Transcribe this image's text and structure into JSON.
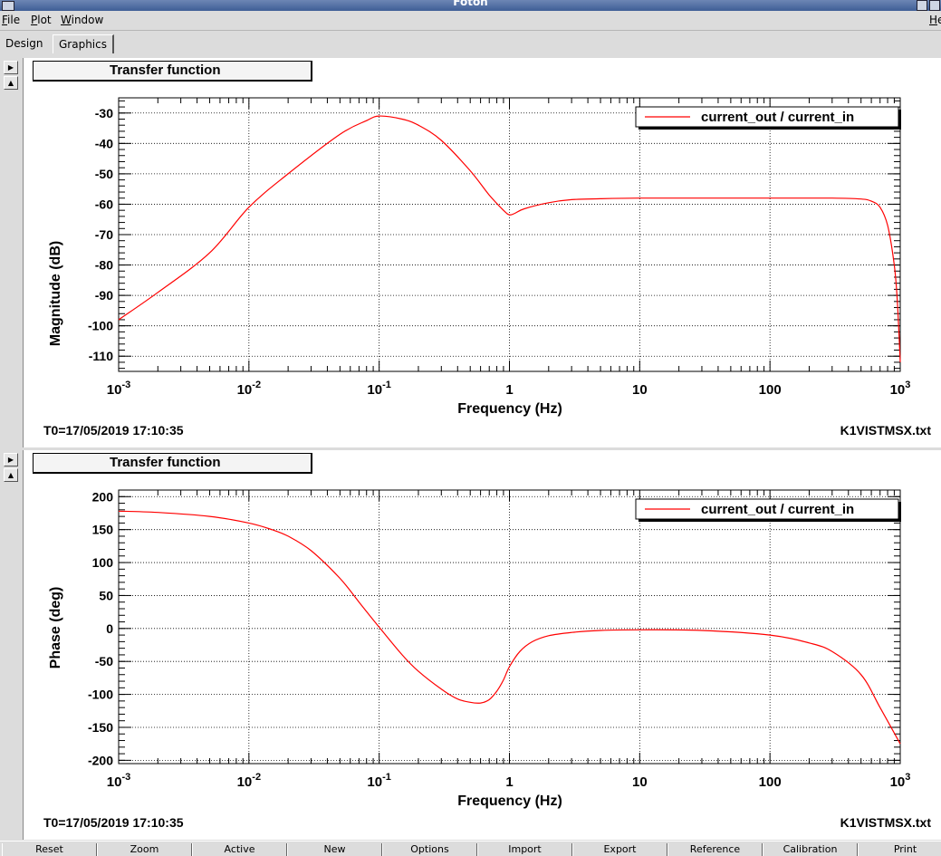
{
  "window": {
    "title": "Foton"
  },
  "menu": [
    {
      "label": "File",
      "key": "F",
      "rest": "ile"
    },
    {
      "label": "Plot",
      "key": "P",
      "rest": "lot"
    },
    {
      "label": "Window",
      "key": "W",
      "rest": "indow"
    },
    {
      "label": "Help",
      "key": "H",
      "rest": "e"
    }
  ],
  "tabs": [
    "Design",
    "Graphics"
  ],
  "bottom_buttons": [
    "Reset",
    "Zoom",
    "Active",
    "New",
    "Options",
    "Import",
    "Export",
    "Reference",
    "Calibration",
    "Print"
  ],
  "chart_data": [
    {
      "type": "line",
      "title": "Transfer function",
      "xlabel": "Frequency (Hz)",
      "ylabel": "Magnitude (dB)",
      "xscale": "log",
      "xlim": [
        0.001,
        1000
      ],
      "ylim": [
        -115,
        -25
      ],
      "xticks": [
        0.001,
        0.01,
        0.1,
        1,
        10,
        100,
        1000
      ],
      "yticks": [
        -110,
        -100,
        -90,
        -80,
        -70,
        -60,
        -50,
        -40,
        -30
      ],
      "ytick_labels": [
        "-110",
        "-100",
        "-90",
        "-80",
        "-70",
        "-60",
        "-50",
        "-40",
        "-30"
      ],
      "grid": true,
      "legend": "top-right",
      "series": [
        {
          "name": "current_out / current_in",
          "color": "#ff0000",
          "x": [
            0.001,
            0.002,
            0.005,
            0.01,
            0.02,
            0.05,
            0.08,
            0.1,
            0.15,
            0.2,
            0.3,
            0.5,
            0.7,
            0.9,
            1.0,
            1.1,
            1.3,
            2,
            3,
            5,
            10,
            30,
            100,
            300,
            500,
            600,
            700,
            800,
            900,
            950,
            1000
          ],
          "y": [
            -98,
            -89,
            -76,
            -61,
            -50,
            -37,
            -32.5,
            -31,
            -32,
            -34,
            -39,
            -49,
            -57,
            -62,
            -63.5,
            -63,
            -61.5,
            -59.5,
            -58.5,
            -58.2,
            -58,
            -58,
            -58,
            -58,
            -58.3,
            -59,
            -61,
            -67,
            -80,
            -92,
            -112
          ]
        }
      ],
      "footer_left": "T0=17/05/2019 17:10:35",
      "footer_right": "K1VISTMSX.txt"
    },
    {
      "type": "line",
      "title": "Transfer function",
      "xlabel": "Frequency (Hz)",
      "ylabel": "Phase (deg)",
      "xscale": "log",
      "xlim": [
        0.001,
        1000
      ],
      "ylim": [
        -205,
        210
      ],
      "xticks": [
        0.001,
        0.01,
        0.1,
        1,
        10,
        100,
        1000
      ],
      "yticks": [
        -200,
        -150,
        -100,
        -50,
        0,
        50,
        100,
        150,
        200
      ],
      "ytick_labels": [
        "-200",
        "-150",
        "-100",
        "-50",
        "0",
        "50",
        "100",
        "150",
        "200"
      ],
      "grid": true,
      "legend": "top-right",
      "series": [
        {
          "name": "current_out / current_in",
          "color": "#ff0000",
          "x": [
            0.001,
            0.002,
            0.005,
            0.01,
            0.015,
            0.02,
            0.03,
            0.05,
            0.07,
            0.1,
            0.15,
            0.2,
            0.3,
            0.4,
            0.5,
            0.6,
            0.7,
            0.8,
            0.9,
            1.0,
            1.2,
            1.5,
            2,
            3,
            5,
            10,
            30,
            100,
            200,
            300,
            500,
            700,
            1000
          ],
          "y": [
            178,
            176,
            170,
            160,
            150,
            140,
            118,
            76,
            40,
            2,
            -40,
            -65,
            -92,
            -107,
            -112,
            -113,
            -108,
            -95,
            -78,
            -58,
            -35,
            -20,
            -11,
            -6,
            -3,
            -2,
            -3,
            -10,
            -22,
            -35,
            -70,
            -120,
            -175
          ]
        }
      ],
      "footer_left": "T0=17/05/2019 17:10:35",
      "footer_right": "K1VISTMSX.txt"
    }
  ]
}
